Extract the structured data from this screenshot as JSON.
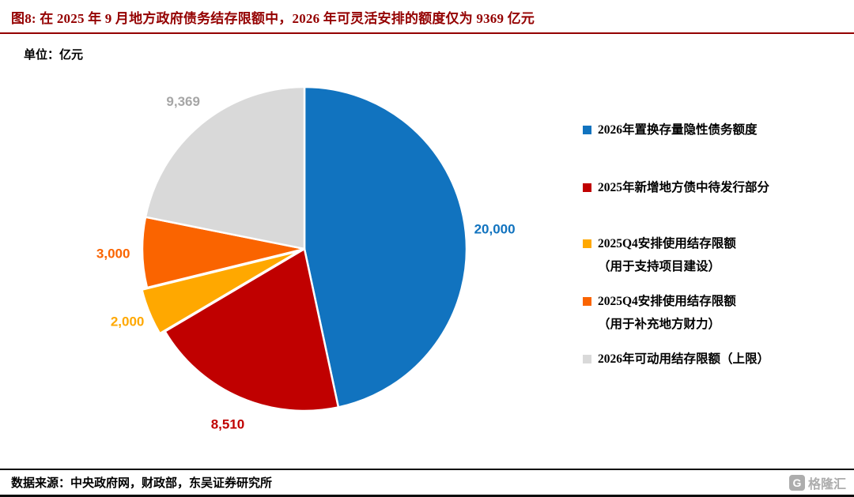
{
  "chart_data": {
    "type": "pie",
    "title": "图8:  在 2025 年 9 月地方政府债务结存限额中，2026 年可灵活安排的额度仅为 9369 亿元",
    "unit_label": "单位：亿元",
    "total": 42879,
    "start_angle": 0,
    "direction": "clockwise",
    "legend_position": "right",
    "slices": [
      {
        "label": "2026年置换存量隐性债务额度",
        "value": 20000,
        "display": "20,000",
        "color": "#1173BF",
        "label_color": "#1173BF",
        "explode": 0
      },
      {
        "label": "2025年新增地方债中待发行部分",
        "value": 8510,
        "display": "8,510",
        "color": "#C00000",
        "label_color": "#C00000",
        "explode": 0
      },
      {
        "label": "2025Q4安排使用结存限额\n（用于支持项目建设）",
        "value": 2000,
        "display": "2,000",
        "color": "#FFA800",
        "label_color": "#FFA800",
        "explode": 7
      },
      {
        "label": "2025Q4安排使用结存限额\n（用于补充地方财力）",
        "value": 3000,
        "display": "3,000",
        "color": "#FA6400",
        "label_color": "#FA6400",
        "explode": 0
      },
      {
        "label": "2026年可动用结存限额（上限）",
        "value": 9369,
        "display": "9,369",
        "color": "#D9D9D9",
        "label_color": "#A6A6A6",
        "explode": 0
      }
    ]
  },
  "header": {
    "accent_color": "#940000"
  },
  "footer": {
    "source": "数据来源：中央政府网，财政部，东吴证券研究所",
    "logo_text": "格隆汇"
  }
}
